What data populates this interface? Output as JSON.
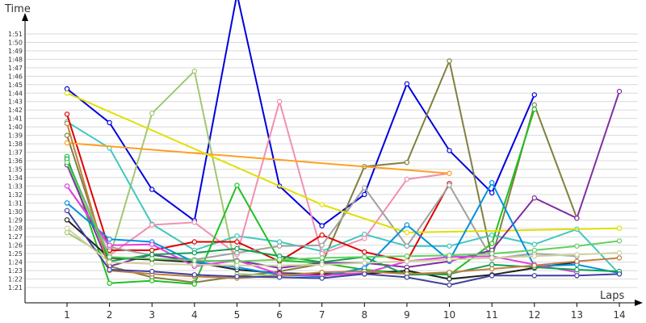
{
  "chart_data": {
    "type": "line",
    "xlabel": "Laps",
    "ylabel": "Time",
    "x_ticks": [
      1,
      2,
      3,
      4,
      5,
      6,
      7,
      8,
      9,
      10,
      11,
      12,
      13,
      14
    ],
    "y_tick_labels": [
      "1:21",
      "1:22",
      "1:23",
      "1:24",
      "1:25",
      "1:26",
      "1:27",
      "1:28",
      "1:29",
      "1:30",
      "1:31",
      "1:32",
      "1:33",
      "1:34",
      "1:35",
      "1:36",
      "1:37",
      "1:38",
      "1:39",
      "1:40",
      "1:41",
      "1:42",
      "1:43",
      "1:44",
      "1:45",
      "1:46",
      "1:47",
      "1:48",
      "1:49",
      "1:50",
      "1:51"
    ],
    "y_tick_seconds": [
      81,
      82,
      83,
      84,
      85,
      86,
      87,
      88,
      89,
      90,
      91,
      92,
      93,
      94,
      95,
      96,
      97,
      98,
      99,
      100,
      101,
      102,
      103,
      104,
      105,
      106,
      107,
      108,
      109,
      110,
      111
    ],
    "xlim": [
      0,
      14.3
    ],
    "ylim_seconds": [
      79.5,
      117
    ],
    "grid": true,
    "legend": "none",
    "series": [
      {
        "color": "#0000e0",
        "values": [
          104.5,
          100.5,
          92.6,
          88.9,
          115.7,
          93,
          88.3,
          92,
          105.1,
          97.2,
          92.2,
          103.8,
          null,
          null
        ]
      },
      {
        "color": "#808040",
        "values": [
          99,
          83.5,
          82.2,
          81.6,
          82.3,
          82.9,
          83.8,
          95.3,
          95.8,
          107.8,
          84.5,
          102.6,
          89.2,
          null
        ]
      },
      {
        "color": "#a0c870",
        "values": [
          87.5,
          84.5,
          101.6,
          106.6,
          82.6,
          82.4,
          82.5,
          null,
          null,
          null,
          null,
          null,
          null,
          null
        ]
      },
      {
        "color": "#40c8c0",
        "values": [
          100.6,
          97.5,
          88.5,
          85.4,
          87.1,
          86.4,
          85.3,
          87.3,
          85.9,
          85.9,
          87.2,
          86.1,
          87.9,
          82.6
        ]
      },
      {
        "color": "#f090b0",
        "values": [
          96,
          84.8,
          88.4,
          88.7,
          84.9,
          103,
          85,
          86.8,
          93.8,
          94.5,
          null,
          null,
          null,
          null
        ]
      },
      {
        "color": "#e00000",
        "values": [
          101.5,
          85.4,
          85.4,
          86.4,
          86.4,
          84.1,
          87.2,
          85.2,
          84.1,
          93.3,
          null,
          null,
          null,
          null
        ]
      },
      {
        "color": "#ffa020",
        "values": [
          98.1,
          null,
          null,
          null,
          null,
          null,
          null,
          null,
          null,
          94.5,
          null,
          null,
          null,
          null
        ]
      },
      {
        "color": "#20c020",
        "values": [
          96.5,
          81.5,
          81.8,
          81.4,
          93.1,
          84.2,
          83.9,
          83.1,
          82.7,
          82.5,
          86.2,
          102.1,
          null,
          null
        ]
      },
      {
        "color": "#a0a0a0",
        "values": [
          93,
          85.8,
          84.8,
          84.3,
          85.1,
          85.9,
          86,
          92.8,
          85.9,
          93.1,
          84.4,
          85,
          84.7,
          null
        ]
      },
      {
        "color": "#e0e000",
        "values": [
          104,
          null,
          null,
          null,
          null,
          null,
          90.8,
          null,
          87.5,
          null,
          null,
          null,
          null,
          88
        ]
      },
      {
        "color": "#8030a0",
        "values": [
          95.5,
          83.5,
          84.9,
          84.1,
          84.2,
          83.3,
          83.9,
          83.9,
          83.4,
          84.1,
          85.4,
          91.6,
          89.2,
          104.2
        ]
      },
      {
        "color": "#202020",
        "values": [
          89,
          84.5,
          84.3,
          84,
          83.1,
          82.7,
          82.6,
          82.6,
          83,
          82,
          82.5,
          83.3,
          84,
          null
        ]
      },
      {
        "color": "#0090e0",
        "values": [
          91,
          86.7,
          86.4,
          84,
          83.4,
          82.5,
          82.3,
          83.3,
          88.4,
          84.2,
          93.4,
          83.5,
          83.7,
          82.7
        ]
      },
      {
        "color": "#e040e0",
        "values": [
          93,
          86,
          86.1,
          83.5,
          84.2,
          82.6,
          82.4,
          82.7,
          84.1,
          84.6,
          84.7,
          83.7,
          82.8,
          null
        ]
      },
      {
        "color": "#10a050",
        "values": [
          96.2,
          84.1,
          84.9,
          85.1,
          85.6,
          84.7,
          84,
          84.6,
          82.5,
          82.6,
          83.7,
          83.4,
          83.1,
          82.9
        ]
      },
      {
        "color": "#10d0b0",
        "values": [
          null,
          null,
          null,
          null,
          null,
          null,
          null,
          null,
          null,
          null,
          null,
          null,
          null,
          null
        ]
      },
      {
        "color": "#c08040",
        "values": [
          100.4,
          83,
          82.6,
          82.3,
          82.1,
          82.4,
          82.8,
          82.9,
          82.6,
          82.8,
          83.2,
          83.6,
          84.1,
          84.5
        ]
      },
      {
        "color": "#4040a0",
        "values": [
          90.1,
          83.1,
          82.9,
          82.5,
          82.3,
          82.2,
          82.1,
          82.6,
          82.2,
          81.3,
          82.4,
          82.4,
          82.4,
          82.6
        ]
      },
      {
        "color": "#60d060",
        "values": [
          95.8,
          84.6,
          84.4,
          84.2,
          84.1,
          84.3,
          84.5,
          84.6,
          84.7,
          84.8,
          85,
          85.4,
          85.9,
          86.5
        ]
      },
      {
        "color": "#d0d0a0",
        "values": [
          88,
          84,
          83.8,
          83.7,
          83.6,
          83.6,
          83.7,
          83.9,
          84.1,
          84.3,
          84.5,
          84.7,
          84.9,
          85.1
        ]
      }
    ]
  }
}
